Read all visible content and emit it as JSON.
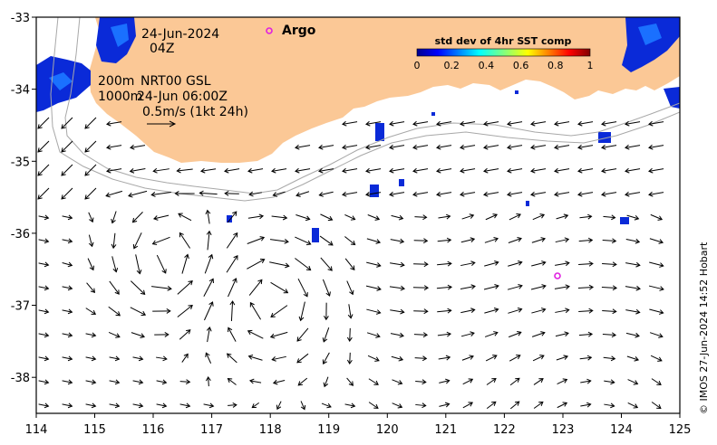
{
  "map": {
    "date": "24-Jun-2024",
    "hour": "04Z",
    "contour_label_1": "200m",
    "product": "NRT00 GSL",
    "contour_label_2": "1000m",
    "valid_time": "24-Jun 06:00Z",
    "scale_label": "0.5m/s (1kt 24h)",
    "argo_label": "Argo",
    "colorbar_title": "std dev of 4hr SST comp",
    "colorbar_ticks": [
      "0",
      "0.2",
      "0.4",
      "0.6",
      "0.8",
      "1"
    ],
    "credit": "© IMOS 27-Jun-2024 14:52 Hobart",
    "land_color": "#fbc896",
    "argo_color": "#e020e0"
  },
  "axes": {
    "x_ticks": [
      "114",
      "115",
      "116",
      "117",
      "118",
      "119",
      "120",
      "121",
      "122",
      "123",
      "124",
      "125"
    ],
    "y_ticks": [
      "-33",
      "-34",
      "-35",
      "-36",
      "-37",
      "-38"
    ],
    "xlim": [
      114,
      125
    ],
    "ylim": [
      -38.5,
      -33
    ]
  }
}
